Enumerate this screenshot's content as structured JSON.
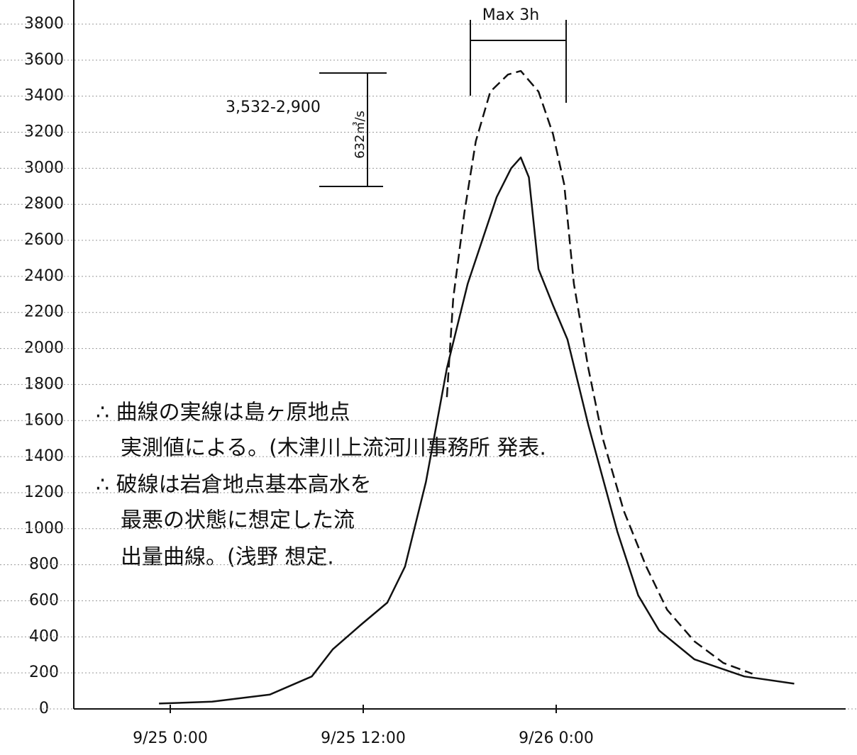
{
  "chart_data": {
    "type": "line",
    "x": null,
    "xlim": [
      -6,
      42
    ],
    "xticks": [
      {
        "value": 0,
        "label": "9/25 0:00"
      },
      {
        "value": 12,
        "label": "9/25 12:00"
      },
      {
        "value": 24,
        "label": "9/26 0:00"
      }
    ],
    "ylim": [
      0,
      3800
    ],
    "yticks": [
      0,
      200,
      400,
      600,
      800,
      1000,
      1200,
      1400,
      1600,
      1800,
      2000,
      2200,
      2400,
      2600,
      2800,
      3000,
      3200,
      3400,
      3600,
      3800
    ],
    "grid": true,
    "series": [
      {
        "color": "#111111",
        "dashed": false,
        "x": [
          -0.7,
          2.6,
          6.2,
          8.8,
          10.1,
          11.9,
          13.5,
          14.6,
          15.9,
          17.2,
          18.5,
          20.3,
          21.2,
          21.8,
          22.3,
          22.9,
          23.8,
          24.7,
          26.0,
          27.8,
          29.1,
          30.4,
          32.6,
          35.7,
          38.8
        ],
        "values": [
          30,
          40,
          80,
          180,
          330,
          470,
          590,
          790,
          1260,
          1890,
          2360,
          2840,
          3000,
          3060,
          2950,
          2440,
          2240,
          2050,
          1575,
          985,
          630,
          435,
          275,
          180,
          140
        ]
      },
      {
        "color": "#111111",
        "dashed": true,
        "x": [
          17.2,
          17.6,
          18.3,
          19.0,
          19.9,
          21.0,
          21.8,
          22.9,
          23.8,
          24.5,
          25.1,
          26.0,
          26.9,
          28.2,
          29.6,
          30.9,
          32.6,
          34.4,
          36.2
        ],
        "values": [
          1730,
          2280,
          2760,
          3150,
          3425,
          3520,
          3540,
          3425,
          3190,
          2910,
          2360,
          1890,
          1500,
          1100,
          790,
          550,
          375,
          255,
          195
        ]
      }
    ],
    "annotations": {
      "max_duration": "Max 3h",
      "difference_formula": "3,532-2,900",
      "difference_result": "632㎥/s",
      "notes": [
        "∴ 曲線の実線は島ヶ原地点",
        "実測値による。(木津川上流河川事務所 発表.",
        "∴ 破線は岩倉地点基本高水を",
        "最悪の状態に想定した流",
        "出量曲線。(浅野 想定."
      ]
    }
  }
}
